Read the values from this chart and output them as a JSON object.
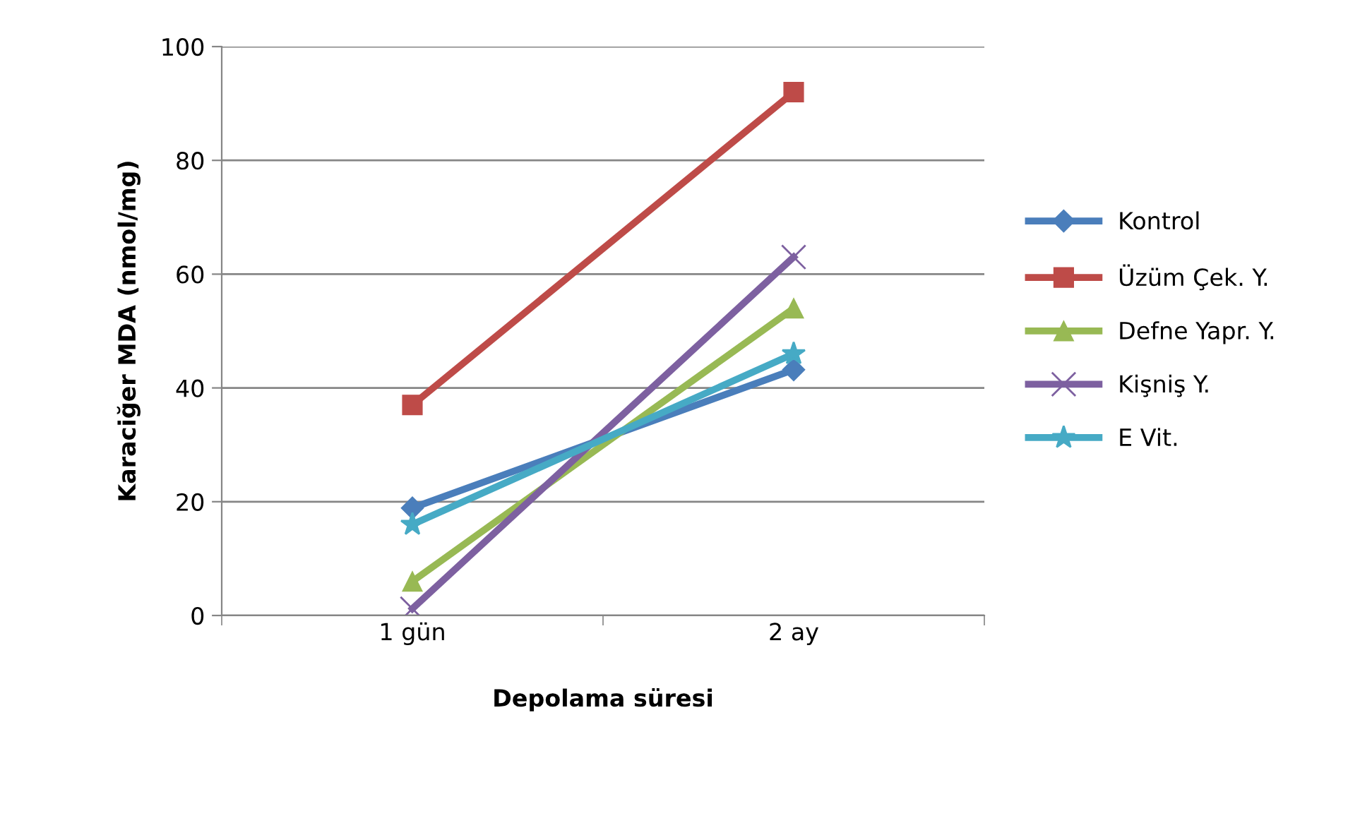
{
  "chart_data": {
    "type": "line",
    "xlabel": "Depolama süresi",
    "ylabel": "Karaciğer MDA (nmol/mg)",
    "categories": [
      "1 gün",
      "2 ay"
    ],
    "series": [
      {
        "name": "Kontrol",
        "color": "#4a7ebb",
        "marker": "diamond",
        "values": [
          18.9,
          43.2
        ]
      },
      {
        "name": "Üzüm Çek. Y.",
        "color": "#be4b48",
        "marker": "square",
        "values": [
          37,
          92
        ]
      },
      {
        "name": "Defne Yapr. Y.",
        "color": "#98b954",
        "marker": "triangle",
        "values": [
          6,
          54
        ]
      },
      {
        "name": "Kişniş Y.",
        "color": "#7d60a0",
        "marker": "cross",
        "values": [
          1.2,
          63
        ]
      },
      {
        "name": "E Vit.",
        "color": "#46aac5",
        "marker": "star",
        "values": [
          16,
          46
        ]
      }
    ],
    "ylim": [
      0,
      100
    ],
    "yticks": [
      0,
      20,
      40,
      60,
      80,
      100
    ],
    "grid": "y",
    "legend": "right"
  }
}
